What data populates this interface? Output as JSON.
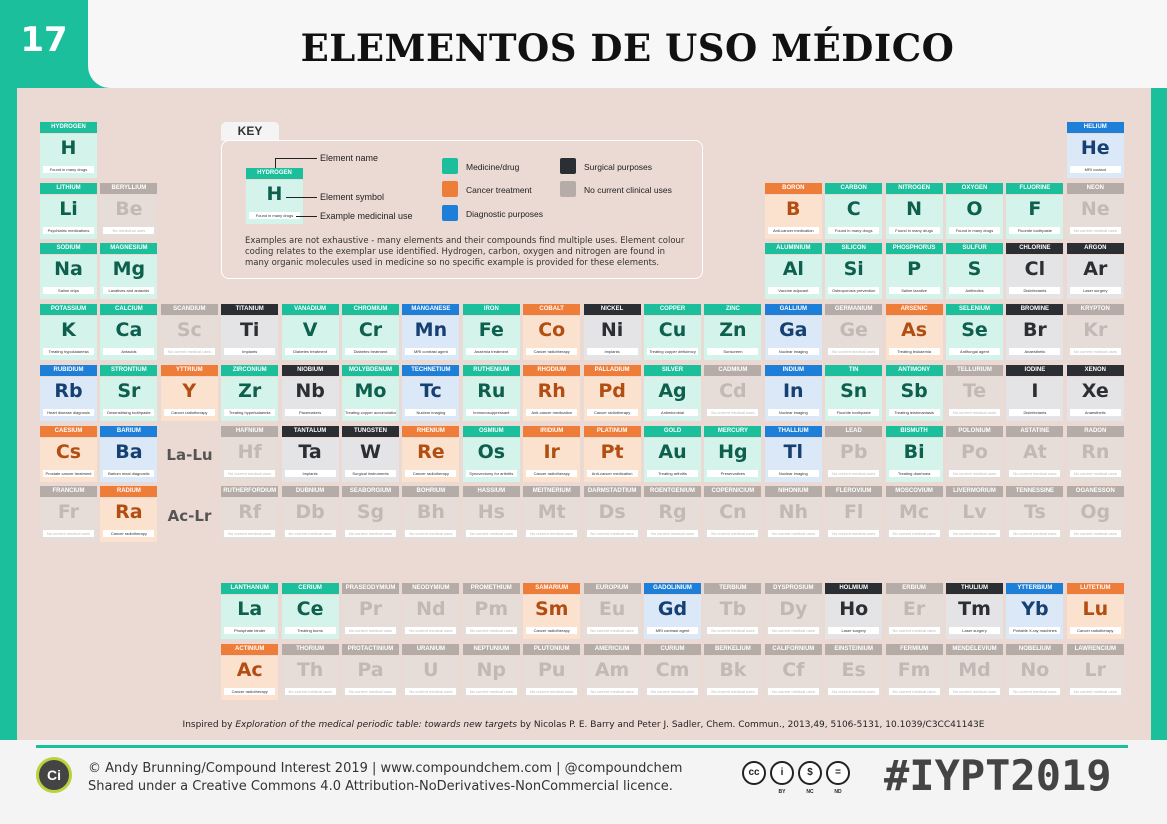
{
  "badge": "17",
  "title": "ELEMENTOS DE USO MÉDICO",
  "colors": {
    "medicine_drug": "#1bbf9c",
    "cancer_treatment": "#ef7d3a",
    "diagnostic_purposes": "#1e7fd8",
    "surgical_purposes": "#2b2e32",
    "no_current_clinical_uses": "#b5aca8"
  },
  "key": {
    "label": "KEY",
    "sample_name": "HYDROGEN",
    "sample_symbol": "H",
    "sample_use": "Found in many drugs",
    "annot_name": "Element name",
    "annot_symbol": "Element symbol",
    "annot_use": "Example medicinal use",
    "legend": [
      {
        "label": "Medicine/drug",
        "cat": "med"
      },
      {
        "label": "Cancer treatment",
        "cat": "can"
      },
      {
        "label": "Diagnostic purposes",
        "cat": "dia"
      },
      {
        "label": "Surgical purposes",
        "cat": "sur"
      },
      {
        "label": "No current clinical uses",
        "cat": "non"
      }
    ],
    "note": "Examples are not exhaustive - many elements and their compounds find multiple uses. Element colour coding relates to the exemplar use identified. Hydrogen, carbon, oxygen and nitrogen are found in many organic molecules used in medicine so no specific example is provided for these elements."
  },
  "series_labels": {
    "lanthanides": "La-Lu",
    "actinides": "Ac-Lr"
  },
  "elements": [
    {
      "name": "HYDROGEN",
      "sym": "H",
      "use": "Found in many drugs",
      "cat": "med",
      "col": 1,
      "row": 1
    },
    {
      "name": "HELIUM",
      "sym": "He",
      "use": "MRI coolant",
      "cat": "dia",
      "col": 18,
      "row": 1
    },
    {
      "name": "LITHIUM",
      "sym": "Li",
      "use": "Psychiatric medications",
      "cat": "med",
      "col": 1,
      "row": 2
    },
    {
      "name": "BERYLLIUM",
      "sym": "Be",
      "use": "No medicinal uses",
      "cat": "non",
      "col": 2,
      "row": 2
    },
    {
      "name": "BORON",
      "sym": "B",
      "use": "Anti-cancer medication",
      "cat": "can",
      "col": 13,
      "row": 2
    },
    {
      "name": "CARBON",
      "sym": "C",
      "use": "Found in many drugs",
      "cat": "med",
      "col": 14,
      "row": 2
    },
    {
      "name": "NITROGEN",
      "sym": "N",
      "use": "Found in many drugs",
      "cat": "med",
      "col": 15,
      "row": 2
    },
    {
      "name": "OXYGEN",
      "sym": "O",
      "use": "Found in many drugs",
      "cat": "med",
      "col": 16,
      "row": 2
    },
    {
      "name": "FLUORINE",
      "sym": "F",
      "use": "Fluoride toothpaste",
      "cat": "med",
      "col": 17,
      "row": 2
    },
    {
      "name": "NEON",
      "sym": "Ne",
      "use": "No current medical uses",
      "cat": "non",
      "col": 18,
      "row": 2
    },
    {
      "name": "SODIUM",
      "sym": "Na",
      "use": "Saline drips",
      "cat": "med",
      "col": 1,
      "row": 3
    },
    {
      "name": "MAGNESIUM",
      "sym": "Mg",
      "use": "Laxatives and antacids",
      "cat": "med",
      "col": 2,
      "row": 3
    },
    {
      "name": "ALUMINIUM",
      "sym": "Al",
      "use": "Vaccine adjuvant",
      "cat": "med",
      "col": 13,
      "row": 3
    },
    {
      "name": "SILICON",
      "sym": "Si",
      "use": "Osteoporosis prevention",
      "cat": "med",
      "col": 14,
      "row": 3
    },
    {
      "name": "PHOSPHORUS",
      "sym": "P",
      "use": "Saline laxative",
      "cat": "med",
      "col": 15,
      "row": 3
    },
    {
      "name": "SULFUR",
      "sym": "S",
      "use": "Antibiotics",
      "cat": "med",
      "col": 16,
      "row": 3
    },
    {
      "name": "CHLORINE",
      "sym": "Cl",
      "use": "Disinfectants",
      "cat": "sur",
      "col": 17,
      "row": 3
    },
    {
      "name": "ARGON",
      "sym": "Ar",
      "use": "Laser surgery",
      "cat": "sur",
      "col": 18,
      "row": 3
    },
    {
      "name": "POTASSIUM",
      "sym": "K",
      "use": "Treating hypokalaemia",
      "cat": "med",
      "col": 1,
      "row": 4
    },
    {
      "name": "CALCIUM",
      "sym": "Ca",
      "use": "Antacids",
      "cat": "med",
      "col": 2,
      "row": 4
    },
    {
      "name": "SCANDIUM",
      "sym": "Sc",
      "use": "No current medical uses",
      "cat": "non",
      "col": 3,
      "row": 4
    },
    {
      "name": "TITANIUM",
      "sym": "Ti",
      "use": "Implants",
      "cat": "sur",
      "col": 4,
      "row": 4
    },
    {
      "name": "VANADIUM",
      "sym": "V",
      "use": "Diabetes treatment",
      "cat": "med",
      "col": 5,
      "row": 4
    },
    {
      "name": "CHROMIUM",
      "sym": "Cr",
      "use": "Diabetes treatment",
      "cat": "med",
      "col": 6,
      "row": 4
    },
    {
      "name": "MANGANESE",
      "sym": "Mn",
      "use": "MRI contrast agent",
      "cat": "dia",
      "col": 7,
      "row": 4
    },
    {
      "name": "IRON",
      "sym": "Fe",
      "use": "Anaemia treatment",
      "cat": "med",
      "col": 8,
      "row": 4
    },
    {
      "name": "COBALT",
      "sym": "Co",
      "use": "Cancer radiotherapy",
      "cat": "can",
      "col": 9,
      "row": 4
    },
    {
      "name": "NICKEL",
      "sym": "Ni",
      "use": "Implants",
      "cat": "sur",
      "col": 10,
      "row": 4
    },
    {
      "name": "COPPER",
      "sym": "Cu",
      "use": "Treating copper deficiency",
      "cat": "med",
      "col": 11,
      "row": 4
    },
    {
      "name": "ZINC",
      "sym": "Zn",
      "use": "Sunscreen",
      "cat": "med",
      "col": 12,
      "row": 4
    },
    {
      "name": "GALLIUM",
      "sym": "Ga",
      "use": "Nuclear imaging",
      "cat": "dia",
      "col": 13,
      "row": 4
    },
    {
      "name": "GERMANIUM",
      "sym": "Ge",
      "use": "No current medical uses",
      "cat": "non",
      "col": 14,
      "row": 4
    },
    {
      "name": "ARSENIC",
      "sym": "As",
      "use": "Treating leukaemia",
      "cat": "can",
      "col": 15,
      "row": 4
    },
    {
      "name": "SELENIUM",
      "sym": "Se",
      "use": "Antifungal agent",
      "cat": "med",
      "col": 16,
      "row": 4
    },
    {
      "name": "BROMINE",
      "sym": "Br",
      "use": "Anaesthetic",
      "cat": "sur",
      "col": 17,
      "row": 4
    },
    {
      "name": "KRYPTON",
      "sym": "Kr",
      "use": "No current medical uses",
      "cat": "non",
      "col": 18,
      "row": 4
    },
    {
      "name": "RUBIDIUM",
      "sym": "Rb",
      "use": "Heart disease diagnosis",
      "cat": "dia",
      "col": 1,
      "row": 5
    },
    {
      "name": "STRONTIUM",
      "sym": "Sr",
      "use": "Desensitising toothpaste",
      "cat": "med",
      "col": 2,
      "row": 5
    },
    {
      "name": "YTTRIUM",
      "sym": "Y",
      "use": "Cancer radiotherapy",
      "cat": "can",
      "col": 3,
      "row": 5
    },
    {
      "name": "ZIRCONIUM",
      "sym": "Zr",
      "use": "Treating hyperkalaemia",
      "cat": "med",
      "col": 4,
      "row": 5
    },
    {
      "name": "NIOBIUM",
      "sym": "Nb",
      "use": "Pacemakers",
      "cat": "sur",
      "col": 5,
      "row": 5
    },
    {
      "name": "MOLYBDENUM",
      "sym": "Mo",
      "use": "Treating copper accumulation",
      "cat": "med",
      "col": 6,
      "row": 5
    },
    {
      "name": "TECHNETIUM",
      "sym": "Tc",
      "use": "Nuclear imaging",
      "cat": "dia",
      "col": 7,
      "row": 5
    },
    {
      "name": "RUTHENIUM",
      "sym": "Ru",
      "use": "Immunosuppressant",
      "cat": "med",
      "col": 8,
      "row": 5
    },
    {
      "name": "RHODIUM",
      "sym": "Rh",
      "use": "Anti-cancer medication",
      "cat": "can",
      "col": 9,
      "row": 5
    },
    {
      "name": "PALLADIUM",
      "sym": "Pd",
      "use": "Cancer radiotherapy",
      "cat": "can",
      "col": 10,
      "row": 5
    },
    {
      "name": "SILVER",
      "sym": "Ag",
      "use": "Antimicrobial",
      "cat": "med",
      "col": 11,
      "row": 5
    },
    {
      "name": "CADMIUM",
      "sym": "Cd",
      "use": "No current medical uses",
      "cat": "non",
      "col": 12,
      "row": 5
    },
    {
      "name": "INDIUM",
      "sym": "In",
      "use": "Nuclear imaging",
      "cat": "dia",
      "col": 13,
      "row": 5
    },
    {
      "name": "TIN",
      "sym": "Sn",
      "use": "Fluoride toothpaste",
      "cat": "med",
      "col": 14,
      "row": 5
    },
    {
      "name": "ANTIMONY",
      "sym": "Sb",
      "use": "Treating leishmaniasis",
      "cat": "med",
      "col": 15,
      "row": 5
    },
    {
      "name": "TELLURIUM",
      "sym": "Te",
      "use": "No current medical uses",
      "cat": "non",
      "col": 16,
      "row": 5
    },
    {
      "name": "IODINE",
      "sym": "I",
      "use": "Disinfectants",
      "cat": "sur",
      "col": 17,
      "row": 5
    },
    {
      "name": "XENON",
      "sym": "Xe",
      "use": "Anaesthetic",
      "cat": "sur",
      "col": 18,
      "row": 5
    },
    {
      "name": "CAESIUM",
      "sym": "Cs",
      "use": "Prostate cancer treatment",
      "cat": "can",
      "col": 1,
      "row": 6
    },
    {
      "name": "BARIUM",
      "sym": "Ba",
      "use": "Barium meal diagnostic",
      "cat": "dia",
      "col": 2,
      "row": 6
    },
    {
      "name": "HAFNIUM",
      "sym": "Hf",
      "use": "No current medical uses",
      "cat": "non",
      "col": 4,
      "row": 6
    },
    {
      "name": "TANTALUM",
      "sym": "Ta",
      "use": "Implants",
      "cat": "sur",
      "col": 5,
      "row": 6
    },
    {
      "name": "TUNGSTEN",
      "sym": "W",
      "use": "Surgical instruments",
      "cat": "sur",
      "col": 6,
      "row": 6
    },
    {
      "name": "RHENIUM",
      "sym": "Re",
      "use": "Cancer radiotherapy",
      "cat": "can",
      "col": 7,
      "row": 6
    },
    {
      "name": "OSMIUM",
      "sym": "Os",
      "use": "Synovectomy for arthritis",
      "cat": "med",
      "col": 8,
      "row": 6
    },
    {
      "name": "IRIDIUM",
      "sym": "Ir",
      "use": "Cancer radiotherapy",
      "cat": "can",
      "col": 9,
      "row": 6
    },
    {
      "name": "PLATINUM",
      "sym": "Pt",
      "use": "Anti-cancer medication",
      "cat": "can",
      "col": 10,
      "row": 6
    },
    {
      "name": "GOLD",
      "sym": "Au",
      "use": "Treating arthritis",
      "cat": "med",
      "col": 11,
      "row": 6
    },
    {
      "name": "MERCURY",
      "sym": "Hg",
      "use": "Preservatives",
      "cat": "med",
      "col": 12,
      "row": 6
    },
    {
      "name": "THALLIUM",
      "sym": "Tl",
      "use": "Nuclear imaging",
      "cat": "dia",
      "col": 13,
      "row": 6
    },
    {
      "name": "LEAD",
      "sym": "Pb",
      "use": "No current medical uses",
      "cat": "non",
      "col": 14,
      "row": 6
    },
    {
      "name": "BISMUTH",
      "sym": "Bi",
      "use": "Treating diarrhoea",
      "cat": "med",
      "col": 15,
      "row": 6
    },
    {
      "name": "POLONIUM",
      "sym": "Po",
      "use": "No current medical uses",
      "cat": "non",
      "col": 16,
      "row": 6
    },
    {
      "name": "ASTATINE",
      "sym": "At",
      "use": "No current medical uses",
      "cat": "non",
      "col": 17,
      "row": 6
    },
    {
      "name": "RADON",
      "sym": "Rn",
      "use": "No current medical uses",
      "cat": "non",
      "col": 18,
      "row": 6
    },
    {
      "name": "FRANCIUM",
      "sym": "Fr",
      "use": "No current medical uses",
      "cat": "non",
      "col": 1,
      "row": 7
    },
    {
      "name": "RADIUM",
      "sym": "Ra",
      "use": "Cancer radiotherapy",
      "cat": "can",
      "col": 2,
      "row": 7
    },
    {
      "name": "RUTHERFORDIUM",
      "sym": "Rf",
      "use": "No current medical uses",
      "cat": "non",
      "col": 4,
      "row": 7
    },
    {
      "name": "DUBNIUM",
      "sym": "Db",
      "use": "No current medical uses",
      "cat": "non",
      "col": 5,
      "row": 7
    },
    {
      "name": "SEABORGIUM",
      "sym": "Sg",
      "use": "No current medical uses",
      "cat": "non",
      "col": 6,
      "row": 7
    },
    {
      "name": "BOHRIUM",
      "sym": "Bh",
      "use": "No current medical uses",
      "cat": "non",
      "col": 7,
      "row": 7
    },
    {
      "name": "HASSIUM",
      "sym": "Hs",
      "use": "No current medical uses",
      "cat": "non",
      "col": 8,
      "row": 7
    },
    {
      "name": "MEITNERIUM",
      "sym": "Mt",
      "use": "No current medical uses",
      "cat": "non",
      "col": 9,
      "row": 7
    },
    {
      "name": "DARMSTADTIUM",
      "sym": "Ds",
      "use": "No current medical uses",
      "cat": "non",
      "col": 10,
      "row": 7
    },
    {
      "name": "ROENTGENIUM",
      "sym": "Rg",
      "use": "No current medical uses",
      "cat": "non",
      "col": 11,
      "row": 7
    },
    {
      "name": "COPERNICIUM",
      "sym": "Cn",
      "use": "No current medical uses",
      "cat": "non",
      "col": 12,
      "row": 7
    },
    {
      "name": "NIHONIUM",
      "sym": "Nh",
      "use": "No current medical uses",
      "cat": "non",
      "col": 13,
      "row": 7
    },
    {
      "name": "FLEROVIUM",
      "sym": "Fl",
      "use": "No current medical uses",
      "cat": "non",
      "col": 14,
      "row": 7
    },
    {
      "name": "MOSCOVIUM",
      "sym": "Mc",
      "use": "No current medical uses",
      "cat": "non",
      "col": 15,
      "row": 7
    },
    {
      "name": "LIVERMORIUM",
      "sym": "Lv",
      "use": "No current medical uses",
      "cat": "non",
      "col": 16,
      "row": 7
    },
    {
      "name": "TENNESSINE",
      "sym": "Ts",
      "use": "No current medical uses",
      "cat": "non",
      "col": 17,
      "row": 7
    },
    {
      "name": "OGANESSON",
      "sym": "Og",
      "use": "No current medical uses",
      "cat": "non",
      "col": 18,
      "row": 7
    },
    {
      "name": "LANTHANUM",
      "sym": "La",
      "use": "Phosphate binder",
      "cat": "med",
      "col": 4,
      "row": 9
    },
    {
      "name": "CERIUM",
      "sym": "Ce",
      "use": "Treating burns",
      "cat": "med",
      "col": 5,
      "row": 9
    },
    {
      "name": "PRASEODYMIUM",
      "sym": "Pr",
      "use": "No current medical uses",
      "cat": "non",
      "col": 6,
      "row": 9
    },
    {
      "name": "NEODYMIUM",
      "sym": "Nd",
      "use": "No current medical uses",
      "cat": "non",
      "col": 7,
      "row": 9
    },
    {
      "name": "PROMETHIUM",
      "sym": "Pm",
      "use": "No current medical uses",
      "cat": "non",
      "col": 8,
      "row": 9
    },
    {
      "name": "SAMARIUM",
      "sym": "Sm",
      "use": "Cancer radiotherapy",
      "cat": "can",
      "col": 9,
      "row": 9
    },
    {
      "name": "EUROPIUM",
      "sym": "Eu",
      "use": "No current medical uses",
      "cat": "non",
      "col": 10,
      "row": 9
    },
    {
      "name": "GADOLINIUM",
      "sym": "Gd",
      "use": "MRI contrast agent",
      "cat": "dia",
      "col": 11,
      "row": 9
    },
    {
      "name": "TERBIUM",
      "sym": "Tb",
      "use": "No current medical uses",
      "cat": "non",
      "col": 12,
      "row": 9
    },
    {
      "name": "DYSPROSIUM",
      "sym": "Dy",
      "use": "No current medical uses",
      "cat": "non",
      "col": 13,
      "row": 9
    },
    {
      "name": "HOLMIUM",
      "sym": "Ho",
      "use": "Laser surgery",
      "cat": "sur",
      "col": 14,
      "row": 9
    },
    {
      "name": "ERBIUM",
      "sym": "Er",
      "use": "No current medical uses",
      "cat": "non",
      "col": 15,
      "row": 9
    },
    {
      "name": "THULIUM",
      "sym": "Tm",
      "use": "Laser surgery",
      "cat": "sur",
      "col": 16,
      "row": 9
    },
    {
      "name": "YTTERBIUM",
      "sym": "Yb",
      "use": "Portable X-ray machines",
      "cat": "dia",
      "col": 17,
      "row": 9
    },
    {
      "name": "LUTETIUM",
      "sym": "Lu",
      "use": "Cancer radiotherapy",
      "cat": "can",
      "col": 18,
      "row": 9
    },
    {
      "name": "ACTINIUM",
      "sym": "Ac",
      "use": "Cancer radiotherapy",
      "cat": "can",
      "col": 4,
      "row": 10
    },
    {
      "name": "THORIUM",
      "sym": "Th",
      "use": "No current medical uses",
      "cat": "non",
      "col": 5,
      "row": 10
    },
    {
      "name": "PROTACTINIUM",
      "sym": "Pa",
      "use": "No current medical uses",
      "cat": "non",
      "col": 6,
      "row": 10
    },
    {
      "name": "URANIUM",
      "sym": "U",
      "use": "No current medical uses",
      "cat": "non",
      "col": 7,
      "row": 10
    },
    {
      "name": "NEPTUNIUM",
      "sym": "Np",
      "use": "No current medical uses",
      "cat": "non",
      "col": 8,
      "row": 10
    },
    {
      "name": "PLUTONIUM",
      "sym": "Pu",
      "use": "No current medical uses",
      "cat": "non",
      "col": 9,
      "row": 10
    },
    {
      "name": "AMERICIUM",
      "sym": "Am",
      "use": "No current medical uses",
      "cat": "non",
      "col": 10,
      "row": 10
    },
    {
      "name": "CURIUM",
      "sym": "Cm",
      "use": "No current medical uses",
      "cat": "non",
      "col": 11,
      "row": 10
    },
    {
      "name": "BERKELIUM",
      "sym": "Bk",
      "use": "No current medical uses",
      "cat": "non",
      "col": 12,
      "row": 10
    },
    {
      "name": "CALIFORNIUM",
      "sym": "Cf",
      "use": "No current medical uses",
      "cat": "non",
      "col": 13,
      "row": 10
    },
    {
      "name": "EINSTEINIUM",
      "sym": "Es",
      "use": "No current medical uses",
      "cat": "non",
      "col": 14,
      "row": 10
    },
    {
      "name": "FERMIUM",
      "sym": "Fm",
      "use": "No current medical uses",
      "cat": "non",
      "col": 15,
      "row": 10
    },
    {
      "name": "MENDELEVIUM",
      "sym": "Md",
      "use": "No current medical uses",
      "cat": "non",
      "col": 16,
      "row": 10
    },
    {
      "name": "NOBELIUM",
      "sym": "No",
      "use": "No current medical uses",
      "cat": "non",
      "col": 17,
      "row": 10
    },
    {
      "name": "LAWRENCIUM",
      "sym": "Lr",
      "use": "No current medical uses",
      "cat": "non",
      "col": 18,
      "row": 10
    }
  ],
  "citation": {
    "prefix": "Inspired by ",
    "title": "Exploration of the medical periodic table: towards new targets",
    "rest": " by Nicolas P. E. Barry  and  Peter J. Sadler, Chem. Commun., 2013,49, 5106-5131, 10.1039/C3CC41143E"
  },
  "footer": {
    "logo": "Ci",
    "credit_line1": "© Andy Brunning/Compound Interest 2019  |  www.compoundchem.com  |  @compoundchem",
    "credit_line2": "Shared under a Creative Commons 4.0 Attribution-NoDerivatives-NonCommercial licence.",
    "cc_icons": [
      {
        "glyph": "cc",
        "label": ""
      },
      {
        "glyph": "i",
        "label": "BY"
      },
      {
        "glyph": "$",
        "label": "NC"
      },
      {
        "glyph": "=",
        "label": "ND"
      }
    ],
    "hashtag": "#IYPT2019"
  }
}
